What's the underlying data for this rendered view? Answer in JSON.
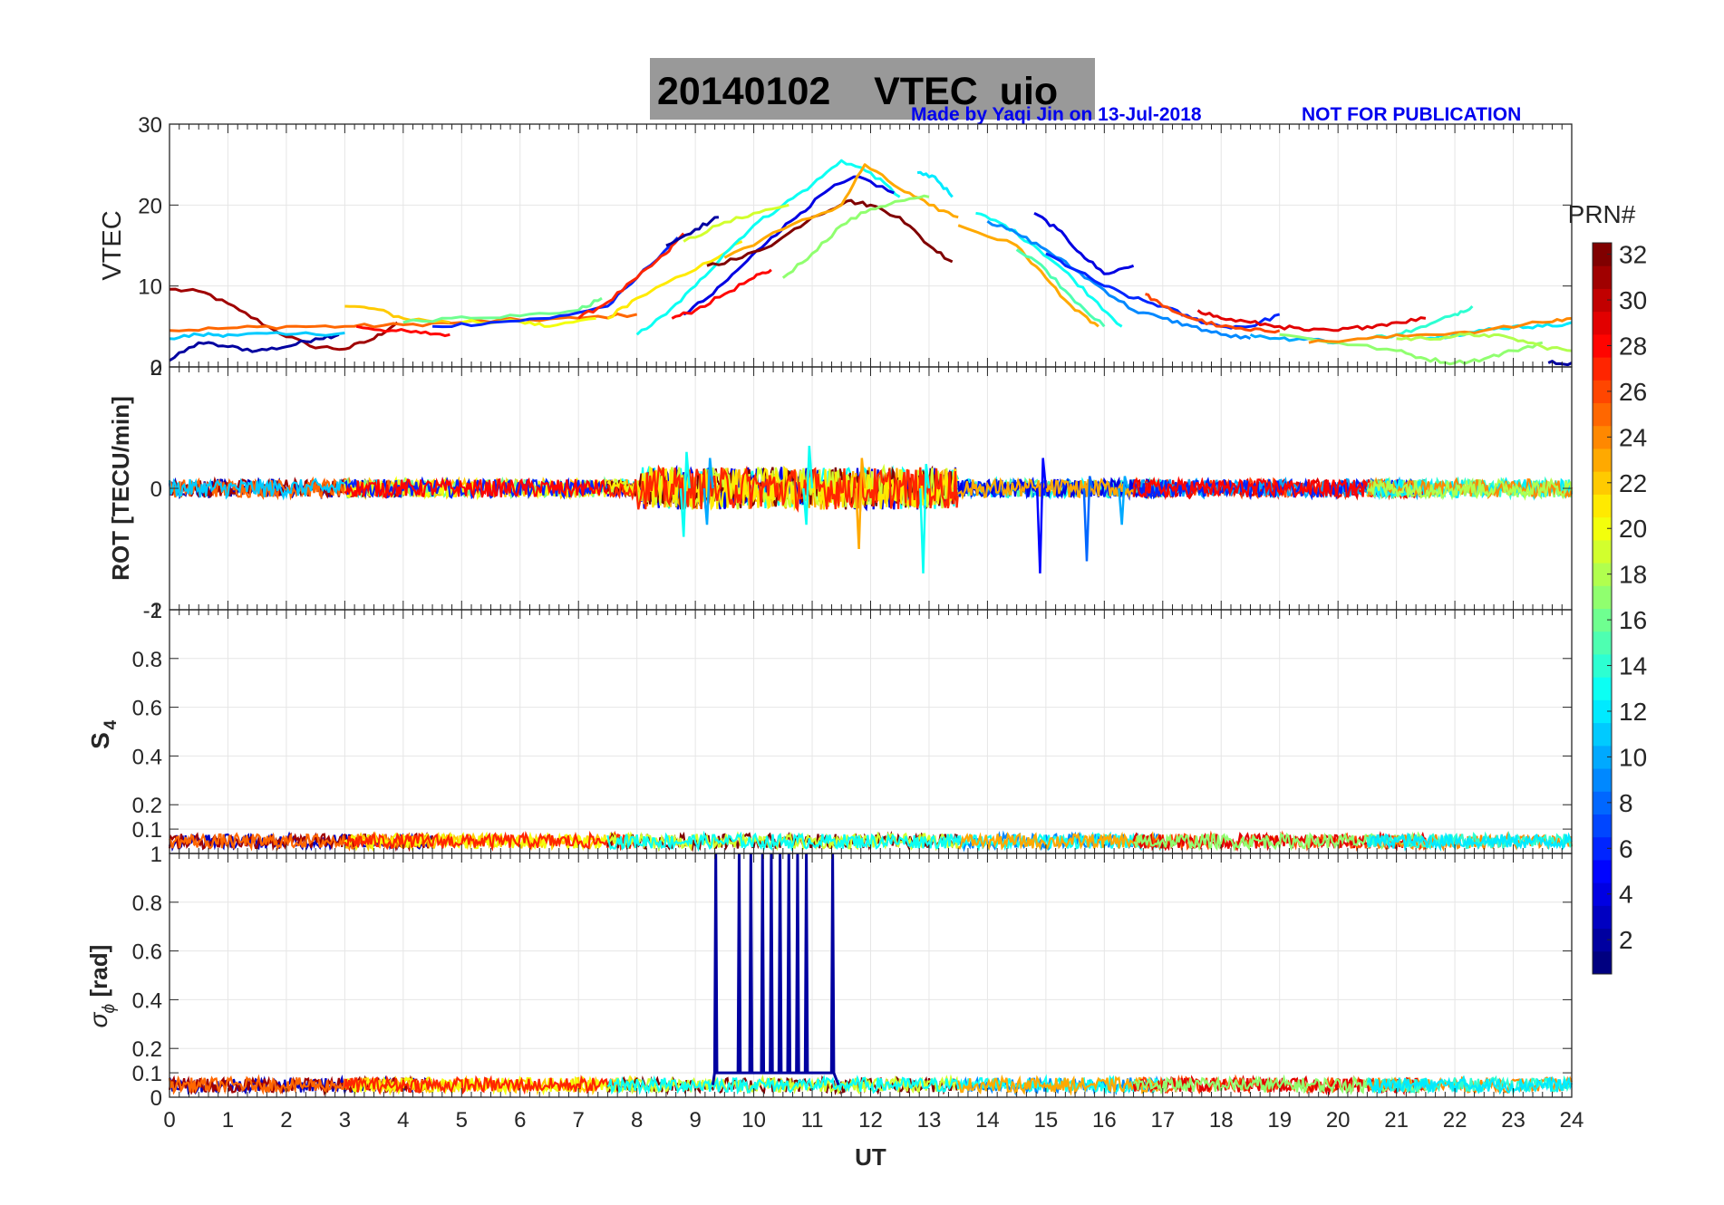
{
  "header": {
    "date": "20140102",
    "product": "VTEC",
    "station": "uio",
    "credit": "Made by Yaqi Jin on 13-Jul-2018",
    "notice": "NOT FOR PUBLICATION"
  },
  "colorbar": {
    "label": "PRN#",
    "ticks": [
      "2",
      "4",
      "6",
      "8",
      "10",
      "12",
      "14",
      "16",
      "18",
      "20",
      "22",
      "24",
      "26",
      "28",
      "30",
      "32"
    ],
    "range": [
      1,
      32
    ],
    "colormap": "jet"
  },
  "chart_data": [
    {
      "type": "line",
      "panel": "VTEC",
      "ylabel": "VTEC",
      "ylim": [
        0,
        30
      ],
      "yticks": [
        "0",
        "10",
        "20",
        "30"
      ],
      "xlim": [
        0,
        24
      ],
      "grid": true,
      "series": [
        {
          "prn": 31,
          "x": [
            0,
            0.6,
            1.2,
            1.8,
            2.4,
            3.0,
            3.5,
            3.9
          ],
          "values": [
            9.6,
            9.2,
            7.0,
            4.5,
            2.6,
            2.2,
            3.5,
            5.5
          ]
        },
        {
          "prn": 2,
          "x": [
            0,
            0.5,
            1.0,
            1.5,
            2.0,
            2.5,
            2.9
          ],
          "values": [
            0.8,
            3.0,
            2.5,
            2.0,
            2.5,
            3.5,
            4.0
          ]
        },
        {
          "prn": 25,
          "x": [
            0,
            1,
            2,
            3,
            4,
            5,
            6,
            7,
            8
          ],
          "values": [
            4.5,
            4.8,
            5.0,
            5.0,
            5.2,
            5.5,
            5.8,
            6.0,
            6.5
          ]
        },
        {
          "prn": 11,
          "x": [
            0,
            0.5,
            1,
            2,
            3
          ],
          "values": [
            3.5,
            4.0,
            4.0,
            4.0,
            4.2
          ]
        },
        {
          "prn": 22,
          "x": [
            3.0,
            3.5,
            4.0,
            4.8
          ],
          "values": [
            7.5,
            7.2,
            6.0,
            5.5
          ]
        },
        {
          "prn": 28,
          "x": [
            3.2,
            3.8,
            4.3,
            4.8
          ],
          "values": [
            5.0,
            4.5,
            4.2,
            4.0
          ]
        },
        {
          "prn": 16,
          "x": [
            4.0,
            5.0,
            6.0,
            7.0,
            7.4
          ],
          "values": [
            5.5,
            6.2,
            6.3,
            7.0,
            8.5
          ]
        },
        {
          "prn": 20,
          "x": [
            5.0,
            6.0,
            6.5,
            7.3
          ],
          "values": [
            5.5,
            5.6,
            5.0,
            6.0
          ]
        },
        {
          "prn": 6,
          "x": [
            4.5,
            5.5,
            6.5,
            7.5,
            8.0,
            8.7
          ],
          "values": [
            5.0,
            5.5,
            6.0,
            7.5,
            11.0,
            16.0
          ]
        },
        {
          "prn": 27,
          "x": [
            7.0,
            7.5,
            8.0,
            8.5,
            8.8
          ],
          "values": [
            6.0,
            8.0,
            11.0,
            14.0,
            16.5
          ]
        },
        {
          "prn": 21,
          "x": [
            7.5,
            8.0,
            9.0,
            9.8
          ],
          "values": [
            6.0,
            8.5,
            12.0,
            15.5
          ]
        },
        {
          "prn": 13,
          "x": [
            8.0,
            8.5,
            9.0,
            9.5,
            10.0,
            10.5,
            11.0,
            11.5,
            12.0,
            12.5
          ],
          "values": [
            4.0,
            6.5,
            10.0,
            14.0,
            17.5,
            20.0,
            22.5,
            25.5,
            24.0,
            21.0
          ]
        },
        {
          "prn": 4,
          "x": [
            8.8,
            9.3,
            9.8,
            10.3,
            10.8,
            11.3,
            11.8,
            12.4
          ],
          "values": [
            6.5,
            9.0,
            12.5,
            16.0,
            19.0,
            22.0,
            23.5,
            21.5
          ]
        },
        {
          "prn": 28,
          "x": [
            8.6,
            9.0,
            9.5,
            10.0,
            10.3
          ],
          "values": [
            6.0,
            7.0,
            9.0,
            11.0,
            12.0
          ]
        },
        {
          "prn": 32,
          "x": [
            9.2,
            9.8,
            10.4,
            11.0,
            11.6,
            12.0,
            12.5,
            13.0,
            13.4
          ],
          "values": [
            12.5,
            13.5,
            15.5,
            18.5,
            20.5,
            20.0,
            18.5,
            15.0,
            13.0
          ]
        },
        {
          "prn": 2,
          "x": [
            8.5,
            9.0,
            9.4
          ],
          "values": [
            15.0,
            17.0,
            18.5
          ]
        },
        {
          "prn": 19,
          "x": [
            8.8,
            9.4,
            10.0,
            10.6
          ],
          "values": [
            15.5,
            17.5,
            19.0,
            20.0
          ]
        },
        {
          "prn": 23,
          "x": [
            9.5,
            10.5,
            11.5,
            11.9,
            12.5,
            13.0,
            13.5
          ],
          "values": [
            13.5,
            17.0,
            20.0,
            25.0,
            22.0,
            20.0,
            18.5
          ]
        },
        {
          "prn": 17,
          "x": [
            10.5,
            11.0,
            11.5,
            12.0,
            12.5,
            13.0
          ],
          "values": [
            11.0,
            14.0,
            17.5,
            19.5,
            20.5,
            21.0
          ]
        },
        {
          "prn": 12,
          "x": [
            12.8,
            13.1,
            13.4
          ],
          "values": [
            24.0,
            23.5,
            21.0
          ]
        },
        {
          "prn": 13,
          "x": [
            13.8,
            14.3,
            14.8,
            15.3,
            15.8,
            16.3
          ],
          "values": [
            19.0,
            17.5,
            15.0,
            12.0,
            8.5,
            5.0
          ]
        },
        {
          "prn": 9,
          "x": [
            14.0,
            14.5,
            15.0,
            15.5,
            16.0,
            16.5,
            17.0,
            17.5,
            18.0,
            18.5
          ],
          "values": [
            18.0,
            16.5,
            14.5,
            12.0,
            9.5,
            7.0,
            6.0,
            5.0,
            4.0,
            3.5
          ]
        },
        {
          "prn": 4,
          "x": [
            14.8,
            15.2,
            15.6,
            16.0,
            16.5
          ],
          "values": [
            19.0,
            17.0,
            14.0,
            11.5,
            12.5
          ]
        },
        {
          "prn": 23,
          "x": [
            13.5,
            14.5,
            15.0,
            15.5,
            15.9
          ],
          "values": [
            17.5,
            15.0,
            11.0,
            7.0,
            5.0
          ]
        },
        {
          "prn": 15,
          "x": [
            14.5,
            15.0,
            15.5,
            16.0
          ],
          "values": [
            14.5,
            12.0,
            8.0,
            5.0
          ]
        },
        {
          "prn": 6,
          "x": [
            15.0,
            15.5,
            16.0,
            16.5,
            17.0,
            17.5,
            18.0,
            18.5,
            19.0
          ],
          "values": [
            14.0,
            12.0,
            10.0,
            8.5,
            7.5,
            6.0,
            5.0,
            5.0,
            6.5
          ]
        },
        {
          "prn": 26,
          "x": [
            16.7,
            17.0,
            17.5,
            18.0,
            18.5,
            19.0
          ],
          "values": [
            9.0,
            7.5,
            6.0,
            5.0,
            4.5,
            4.5
          ]
        },
        {
          "prn": 29,
          "x": [
            17.6,
            18.0,
            18.5,
            19.0,
            19.5,
            20.0,
            20.5,
            21.0,
            21.5
          ],
          "values": [
            7.0,
            6.0,
            5.5,
            5.0,
            4.5,
            4.5,
            5.0,
            5.5,
            6.0
          ]
        },
        {
          "prn": 10,
          "x": [
            18.5,
            19.0,
            19.5,
            20.0
          ],
          "values": [
            4.0,
            3.5,
            3.5,
            3.0
          ]
        },
        {
          "prn": 17,
          "x": [
            19.0,
            20.0,
            21.0,
            21.5,
            22.0,
            22.5,
            23.0,
            23.5
          ],
          "values": [
            4.0,
            3.0,
            2.0,
            1.0,
            0.5,
            1.0,
            2.0,
            3.0
          ]
        },
        {
          "prn": 14,
          "x": [
            20.5,
            21.0,
            21.5,
            22.0,
            22.3
          ],
          "values": [
            3.5,
            4.0,
            5.0,
            6.5,
            7.5
          ]
        },
        {
          "prn": 12,
          "x": [
            21.5,
            22.0,
            22.5,
            23.0,
            23.5,
            24.0
          ],
          "values": [
            3.5,
            4.0,
            4.5,
            5.0,
            5.0,
            5.5
          ]
        },
        {
          "prn": 24,
          "x": [
            19.5,
            20.5,
            21.5,
            22.5,
            23.5,
            24.0
          ],
          "values": [
            3.0,
            3.5,
            4.0,
            4.5,
            5.5,
            6.0
          ]
        },
        {
          "prn": 18,
          "x": [
            21.0,
            21.5,
            22.0,
            22.5,
            23.0,
            23.5,
            24.0
          ],
          "values": [
            3.5,
            3.5,
            3.8,
            4.0,
            3.5,
            2.5,
            2.0
          ]
        },
        {
          "prn": 2,
          "x": [
            23.6,
            24.0
          ],
          "values": [
            0.5,
            0.5
          ]
        }
      ]
    },
    {
      "type": "scatter",
      "panel": "ROT",
      "ylabel": "ROT [TECU/min]",
      "ylim": [
        -2,
        2
      ],
      "yticks": [
        "-2",
        "0",
        "2"
      ],
      "xlim": [
        0,
        24
      ],
      "grid": true,
      "typical_range": [
        -0.3,
        0.3
      ],
      "events": [
        {
          "prn": 13,
          "x": 8.8,
          "min": -0.8,
          "max": 0.6
        },
        {
          "prn": 10,
          "x": 9.2,
          "min": -0.6,
          "max": 0.5
        },
        {
          "prn": 13,
          "x": 10.9,
          "min": -0.6,
          "max": 0.7
        },
        {
          "prn": 23,
          "x": 11.8,
          "min": -1.0,
          "max": 0.5
        },
        {
          "prn": 13,
          "x": 12.9,
          "min": -1.4,
          "max": 0.4
        },
        {
          "prn": 5,
          "x": 14.9,
          "min": -1.4,
          "max": 0.5
        },
        {
          "prn": 8,
          "x": 15.7,
          "min": -1.2,
          "max": 0.2
        },
        {
          "prn": 10,
          "x": 16.3,
          "min": -0.6,
          "max": 0.2
        }
      ]
    },
    {
      "type": "scatter",
      "panel": "S4",
      "ylabel": "S4",
      "ylim": [
        0,
        1
      ],
      "yticks": [
        "0.1",
        "0.2",
        "0.4",
        "0.6",
        "0.8",
        "1"
      ],
      "xlim": [
        0,
        24
      ],
      "grid": true,
      "typical_range": [
        0.02,
        0.08
      ]
    },
    {
      "type": "line",
      "panel": "sigma_phi",
      "ylabel": "σ_ϕ [rad]",
      "ylim": [
        0,
        1
      ],
      "yticks": [
        "0",
        "0.1",
        "0.2",
        "0.4",
        "0.6",
        "0.8",
        "1"
      ],
      "xlim": [
        0,
        24
      ],
      "xticks": [
        "0",
        "1",
        "2",
        "3",
        "4",
        "5",
        "6",
        "7",
        "8",
        "9",
        "10",
        "11",
        "12",
        "13",
        "14",
        "15",
        "16",
        "17",
        "18",
        "19",
        "20",
        "21",
        "22",
        "23",
        "24"
      ],
      "xlabel": "UT",
      "grid": true,
      "typical_range": [
        0.02,
        0.08
      ],
      "spikes": {
        "prn": 2,
        "x": [
          9.35,
          9.75,
          9.95,
          10.15,
          10.3,
          10.45,
          10.6,
          10.75,
          10.9,
          11.35
        ],
        "value": 1.0
      }
    }
  ]
}
